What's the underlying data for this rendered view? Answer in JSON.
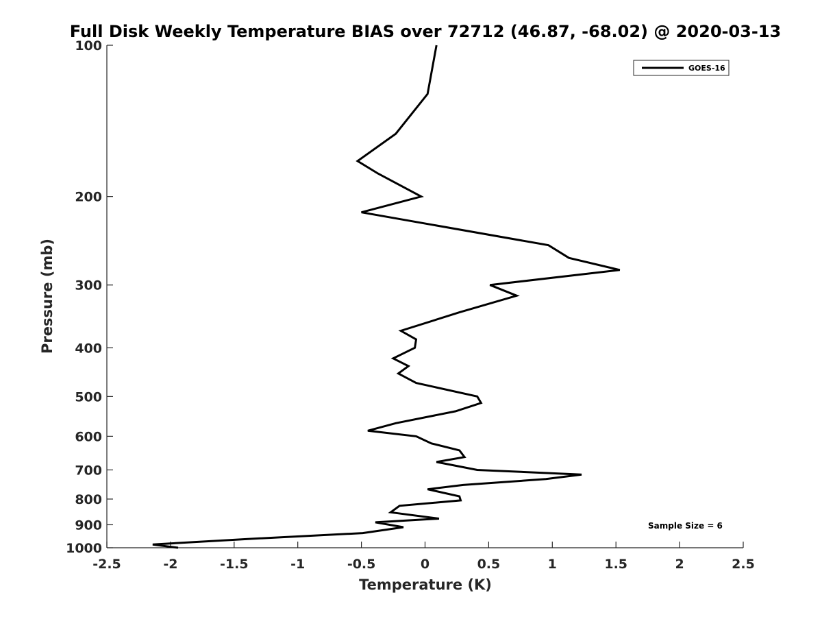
{
  "chart_data": {
    "type": "line",
    "title": "Full Disk Weekly Temperature BIAS over 72712 (46.87, -68.02) @ 2020-03-13",
    "xlabel": "Temperature (K)",
    "ylabel": "Pressure (mb)",
    "xlim": [
      -2.5,
      2.5
    ],
    "ylim": [
      100,
      1000
    ],
    "y_scale": "log",
    "y_reversed": true,
    "x_ticks": [
      -2.5,
      -2,
      -1.5,
      -1,
      -0.5,
      0,
      0.5,
      1,
      1.5,
      2,
      2.5
    ],
    "x_tick_labels": [
      "-2.5",
      "-2",
      "-1.5",
      "-1",
      "-0.5",
      "0",
      "0.5",
      "1",
      "1.5",
      "2",
      "2.5"
    ],
    "y_ticks": [
      100,
      200,
      300,
      400,
      500,
      600,
      700,
      800,
      900,
      1000
    ],
    "y_tick_labels": [
      "100",
      "200",
      "300",
      "400",
      "500",
      "600",
      "700",
      "800",
      "900",
      "1000"
    ],
    "grid": false,
    "legend_position": "top-right",
    "annotation": "Sample Size = 6",
    "series": [
      {
        "name": "GOES-16",
        "color": "#000000",
        "points": [
          {
            "x": 0.09,
            "y": 100
          },
          {
            "x": 0.02,
            "y": 125
          },
          {
            "x": -0.23,
            "y": 150
          },
          {
            "x": -0.53,
            "y": 170
          },
          {
            "x": -0.37,
            "y": 180
          },
          {
            "x": -0.03,
            "y": 200
          },
          {
            "x": -0.5,
            "y": 215
          },
          {
            "x": 0.97,
            "y": 250
          },
          {
            "x": 1.13,
            "y": 265
          },
          {
            "x": 1.53,
            "y": 280
          },
          {
            "x": 0.51,
            "y": 300
          },
          {
            "x": 0.72,
            "y": 315
          },
          {
            "x": 0.27,
            "y": 340
          },
          {
            "x": -0.19,
            "y": 370
          },
          {
            "x": -0.07,
            "y": 385
          },
          {
            "x": -0.08,
            "y": 400
          },
          {
            "x": -0.25,
            "y": 420
          },
          {
            "x": -0.13,
            "y": 435
          },
          {
            "x": -0.21,
            "y": 450
          },
          {
            "x": -0.07,
            "y": 470
          },
          {
            "x": 0.41,
            "y": 500
          },
          {
            "x": 0.44,
            "y": 515
          },
          {
            "x": 0.24,
            "y": 535
          },
          {
            "x": -0.23,
            "y": 565
          },
          {
            "x": -0.45,
            "y": 585
          },
          {
            "x": -0.07,
            "y": 600
          },
          {
            "x": 0.05,
            "y": 620
          },
          {
            "x": 0.27,
            "y": 640
          },
          {
            "x": 0.31,
            "y": 660
          },
          {
            "x": 0.09,
            "y": 675
          },
          {
            "x": 0.41,
            "y": 700
          },
          {
            "x": 1.23,
            "y": 715
          },
          {
            "x": 0.95,
            "y": 730
          },
          {
            "x": 0.3,
            "y": 750
          },
          {
            "x": 0.02,
            "y": 765
          },
          {
            "x": 0.27,
            "y": 790
          },
          {
            "x": 0.28,
            "y": 805
          },
          {
            "x": -0.2,
            "y": 825
          },
          {
            "x": -0.27,
            "y": 850
          },
          {
            "x": 0.11,
            "y": 875
          },
          {
            "x": -0.39,
            "y": 890
          },
          {
            "x": -0.17,
            "y": 910
          },
          {
            "x": -0.49,
            "y": 935
          },
          {
            "x": -1.37,
            "y": 960
          },
          {
            "x": -2.14,
            "y": 985
          },
          {
            "x": -1.94,
            "y": 1000
          }
        ]
      }
    ]
  }
}
